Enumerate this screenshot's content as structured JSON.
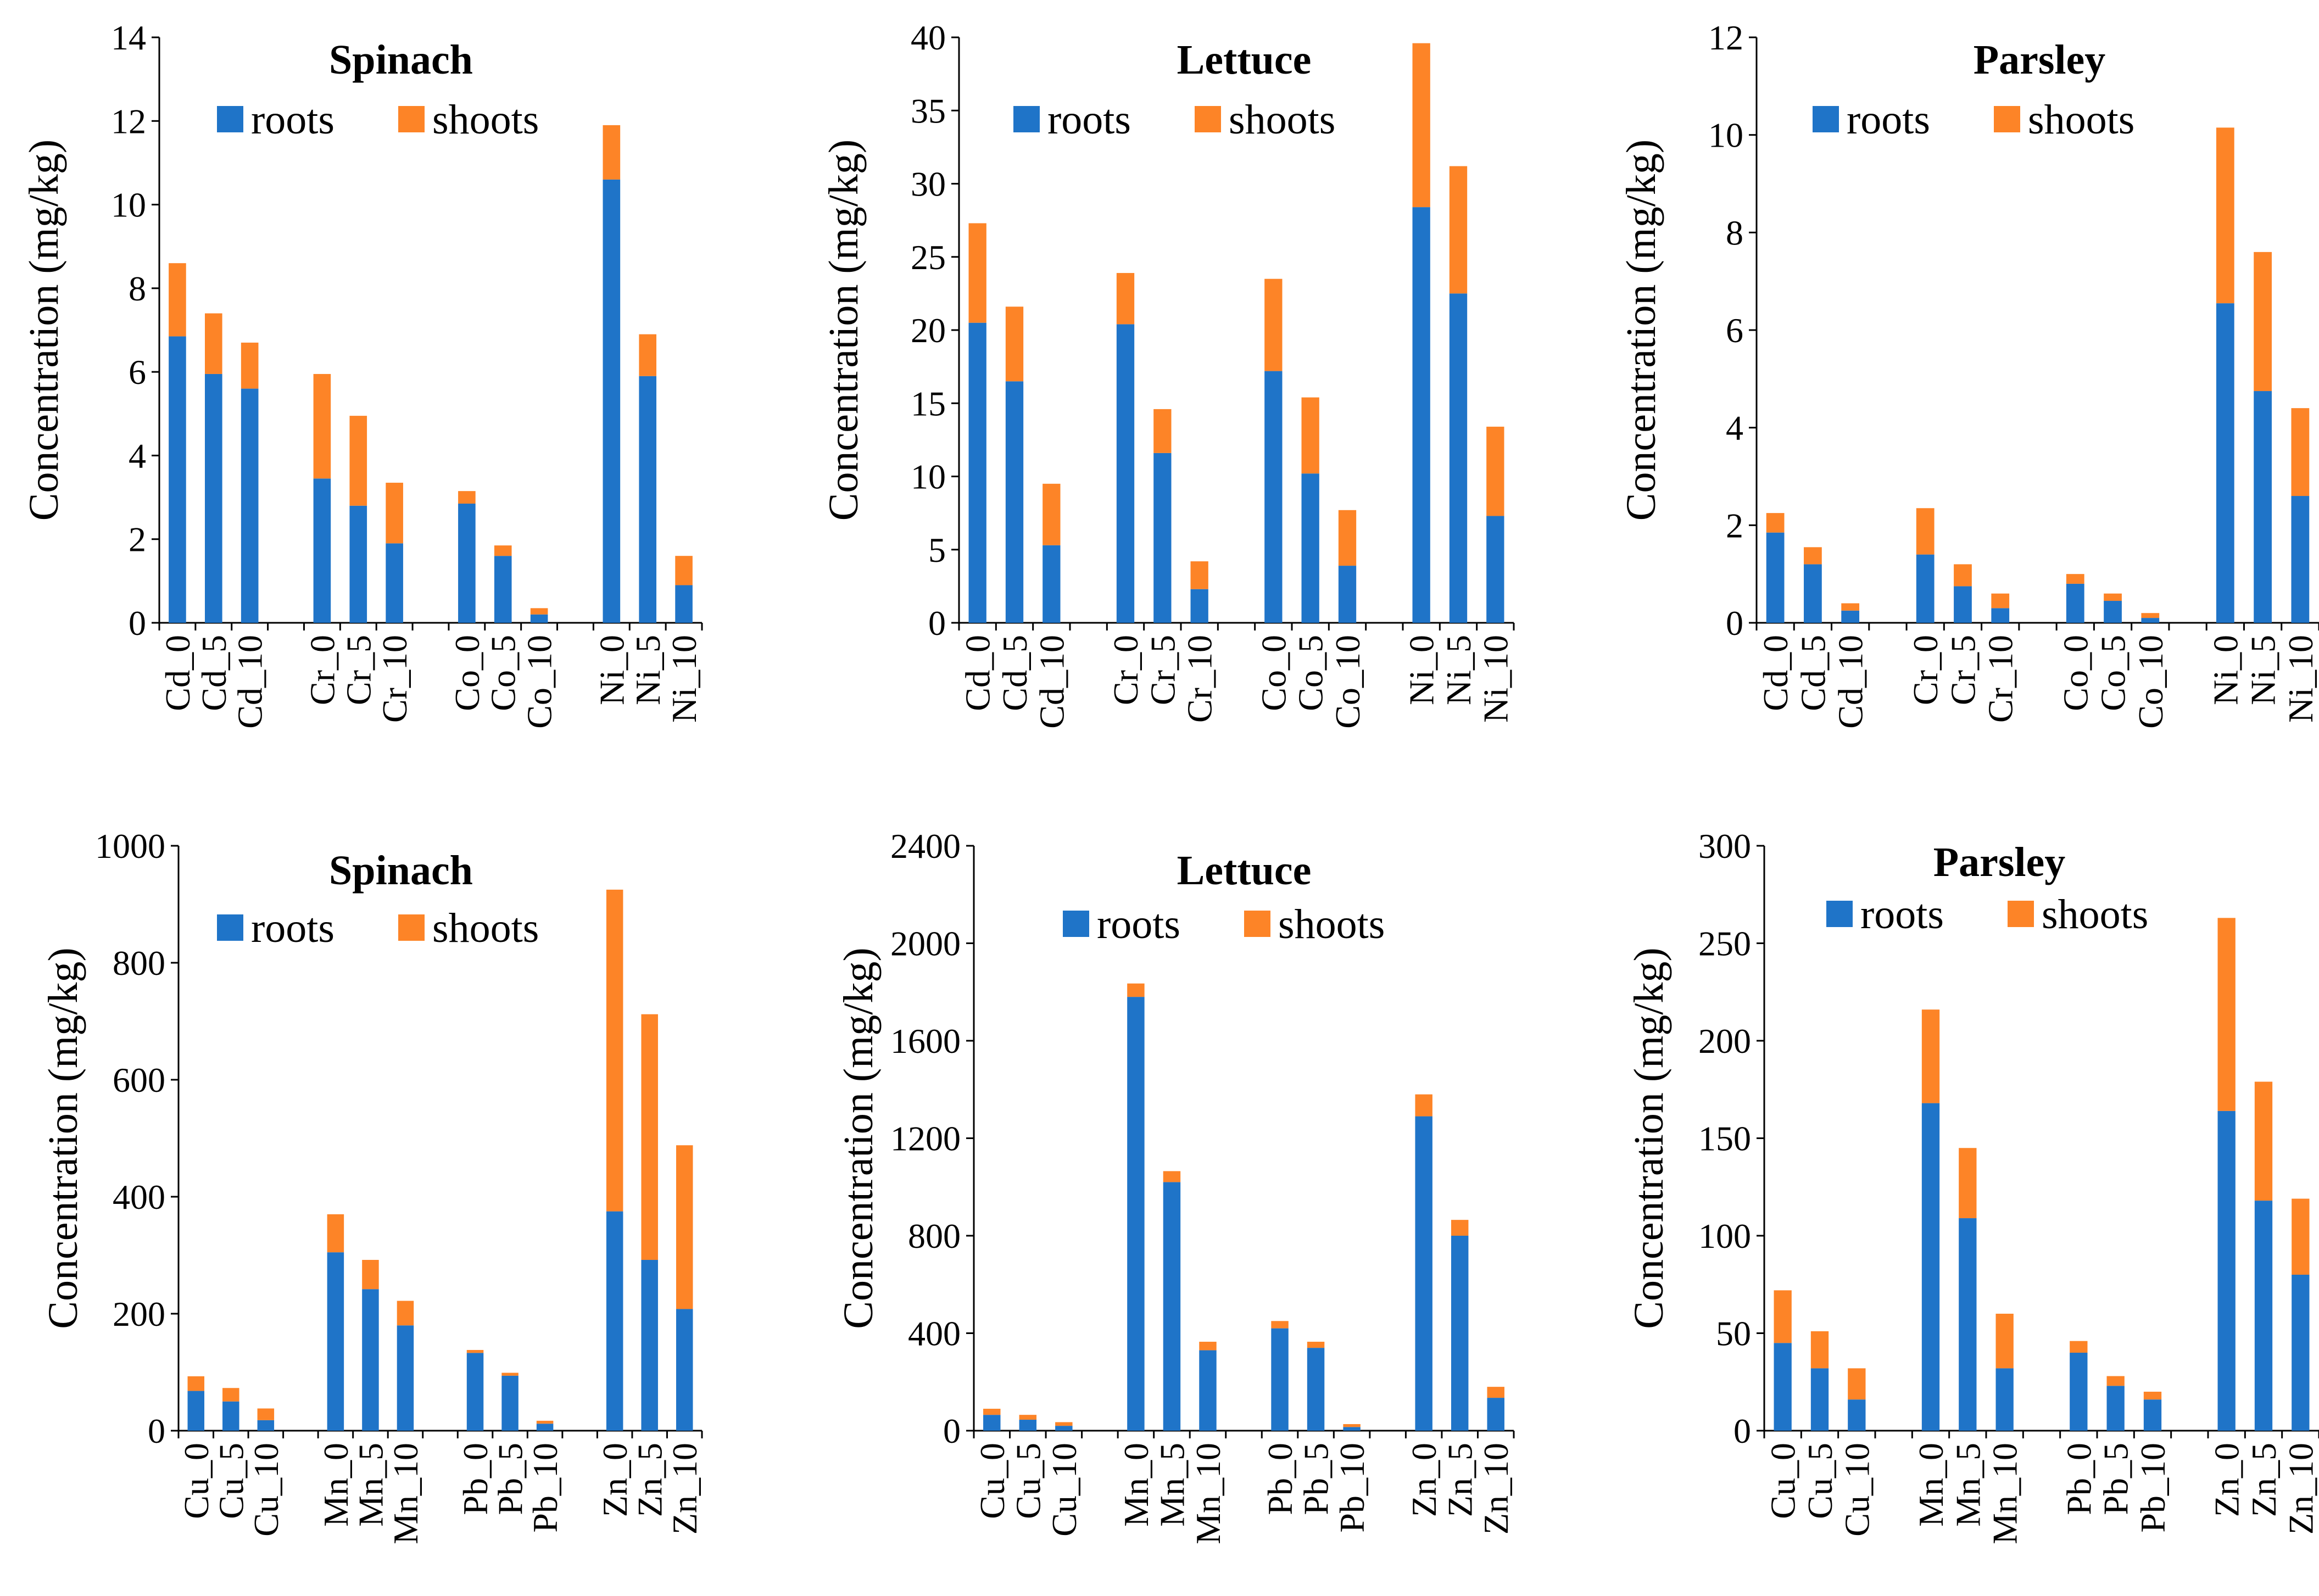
{
  "colors": {
    "roots": "#1f74c8",
    "shoots": "#fd8427",
    "axis": "#000000"
  },
  "chart_data": [
    {
      "type": "bar",
      "stacked": true,
      "title": "Spinach",
      "xlabel": "",
      "ylabel": "Concentration (mg/kg)",
      "ylim": [
        0,
        14
      ],
      "yticks": [
        0,
        2,
        4,
        6,
        8,
        10,
        12,
        14
      ],
      "legend": {
        "position": "top-center",
        "entries": [
          "roots",
          "shoots"
        ]
      },
      "categories": [
        "Cd_0",
        "Cd_5",
        "Cd_10",
        "Cr_0",
        "Cr_5",
        "Cr_10",
        "Co_0",
        "Co_5",
        "Co_10",
        "Ni_0",
        "Ni_5",
        "Ni_10"
      ],
      "series": [
        {
          "name": "roots",
          "values": [
            6.85,
            5.95,
            5.6,
            3.45,
            2.8,
            1.9,
            2.85,
            1.6,
            0.2,
            10.6,
            5.9,
            0.9
          ]
        },
        {
          "name": "shoots",
          "values": [
            1.75,
            1.45,
            1.1,
            2.5,
            2.15,
            1.45,
            0.3,
            0.25,
            0.15,
            1.3,
            1.0,
            0.7
          ]
        }
      ]
    },
    {
      "type": "bar",
      "stacked": true,
      "title": "Lettuce",
      "xlabel": "",
      "ylabel": "Concentration (mg/kg)",
      "ylim": [
        0,
        40
      ],
      "yticks": [
        0,
        5,
        10,
        15,
        20,
        25,
        30,
        35,
        40
      ],
      "legend": {
        "position": "top-center",
        "entries": [
          "roots",
          "shoots"
        ]
      },
      "categories": [
        "Cd_0",
        "Cd_5",
        "Cd_10",
        "Cr_0",
        "Cr_5",
        "Cr_10",
        "Co_0",
        "Co_5",
        "Co_10",
        "Ni_0",
        "Ni_5",
        "Ni_10"
      ],
      "series": [
        {
          "name": "roots",
          "values": [
            20.5,
            16.5,
            5.3,
            20.4,
            11.6,
            2.3,
            17.2,
            10.2,
            3.9,
            28.4,
            22.5,
            7.3
          ]
        },
        {
          "name": "shoots",
          "values": [
            6.8,
            5.1,
            4.2,
            3.5,
            3.0,
            1.9,
            6.3,
            5.2,
            3.8,
            11.2,
            8.7,
            6.1
          ]
        }
      ]
    },
    {
      "type": "bar",
      "stacked": true,
      "title": "Parsley",
      "xlabel": "",
      "ylabel": "Concentration (mg/kg)",
      "ylim": [
        0,
        12
      ],
      "yticks": [
        0,
        2,
        4,
        6,
        8,
        10,
        12
      ],
      "legend": {
        "position": "top-center",
        "entries": [
          "roots",
          "shoots"
        ]
      },
      "categories": [
        "Cd_0",
        "Cd_5",
        "Cd_10",
        "Cr_0",
        "Cr_5",
        "Cr_10",
        "Co_0",
        "Co_5",
        "Co_10",
        "Ni_0",
        "Ni_5",
        "Ni_10"
      ],
      "series": [
        {
          "name": "roots",
          "values": [
            1.85,
            1.2,
            0.25,
            1.4,
            0.75,
            0.3,
            0.8,
            0.45,
            0.1,
            6.55,
            4.75,
            2.6
          ]
        },
        {
          "name": "shoots",
          "values": [
            0.4,
            0.35,
            0.15,
            0.95,
            0.45,
            0.3,
            0.2,
            0.15,
            0.1,
            3.6,
            2.85,
            1.8
          ]
        }
      ]
    },
    {
      "type": "bar",
      "stacked": true,
      "title": "Spinach",
      "xlabel": "",
      "ylabel": "Concentration (mg/kg)",
      "ylim": [
        0,
        1000
      ],
      "yticks": [
        0,
        200,
        400,
        600,
        800,
        1000
      ],
      "legend": {
        "position": "top-center",
        "entries": [
          "roots",
          "shoots"
        ]
      },
      "categories": [
        "Cu_0",
        "Cu_5",
        "Cu_10",
        "Mn_0",
        "Mn_5",
        "Mn_10",
        "Pb_0",
        "Pb_5",
        "Pb_10",
        "Zn_0",
        "Zn_5",
        "Zn_10"
      ],
      "series": [
        {
          "name": "roots",
          "values": [
            68,
            50,
            18,
            305,
            242,
            180,
            133,
            94,
            12,
            375,
            292,
            208
          ]
        },
        {
          "name": "shoots",
          "values": [
            25,
            23,
            20,
            65,
            50,
            42,
            5,
            5,
            5,
            550,
            420,
            280
          ]
        }
      ]
    },
    {
      "type": "bar",
      "stacked": true,
      "title": "Lettuce",
      "xlabel": "",
      "ylabel": "Concentration (mg/kg)",
      "ylim": [
        0,
        2400
      ],
      "yticks": [
        0,
        400,
        800,
        1200,
        1600,
        2000,
        2400
      ],
      "legend": {
        "position": "top-center",
        "entries": [
          "roots",
          "shoots"
        ]
      },
      "categories": [
        "Cu_0",
        "Cu_5",
        "Cu_10",
        "Mn_0",
        "Mn_5",
        "Mn_10",
        "Pb_0",
        "Pb_5",
        "Pb_10",
        "Zn_0",
        "Zn_5",
        "Zn_10"
      ],
      "series": [
        {
          "name": "roots",
          "values": [
            65,
            45,
            20,
            1780,
            1020,
            330,
            420,
            340,
            15,
            1290,
            800,
            135
          ]
        },
        {
          "name": "shoots",
          "values": [
            25,
            20,
            15,
            55,
            45,
            35,
            30,
            25,
            12,
            90,
            65,
            45
          ]
        }
      ]
    },
    {
      "type": "bar",
      "stacked": true,
      "title": "Parsley",
      "xlabel": "",
      "ylabel": "Concentration (mg/kg)",
      "ylim": [
        0,
        300
      ],
      "yticks": [
        0,
        50,
        100,
        150,
        200,
        250,
        300
      ],
      "legend": {
        "position": "top-center",
        "entries": [
          "roots",
          "shoots"
        ]
      },
      "categories": [
        "Cu_0",
        "Cu_5",
        "Cu_10",
        "Mn_0",
        "Mn_5",
        "Mn_10",
        "Pb_0",
        "Pb_5",
        "Pb_10",
        "Zn_0",
        "Zn_5",
        "Zn_10"
      ],
      "series": [
        {
          "name": "roots",
          "values": [
            45,
            32,
            16,
            168,
            109,
            32,
            40,
            23,
            16,
            164,
            118,
            80
          ]
        },
        {
          "name": "shoots",
          "values": [
            27,
            19,
            16,
            48,
            36,
            28,
            6,
            5,
            4,
            99,
            61,
            39
          ]
        }
      ]
    }
  ]
}
